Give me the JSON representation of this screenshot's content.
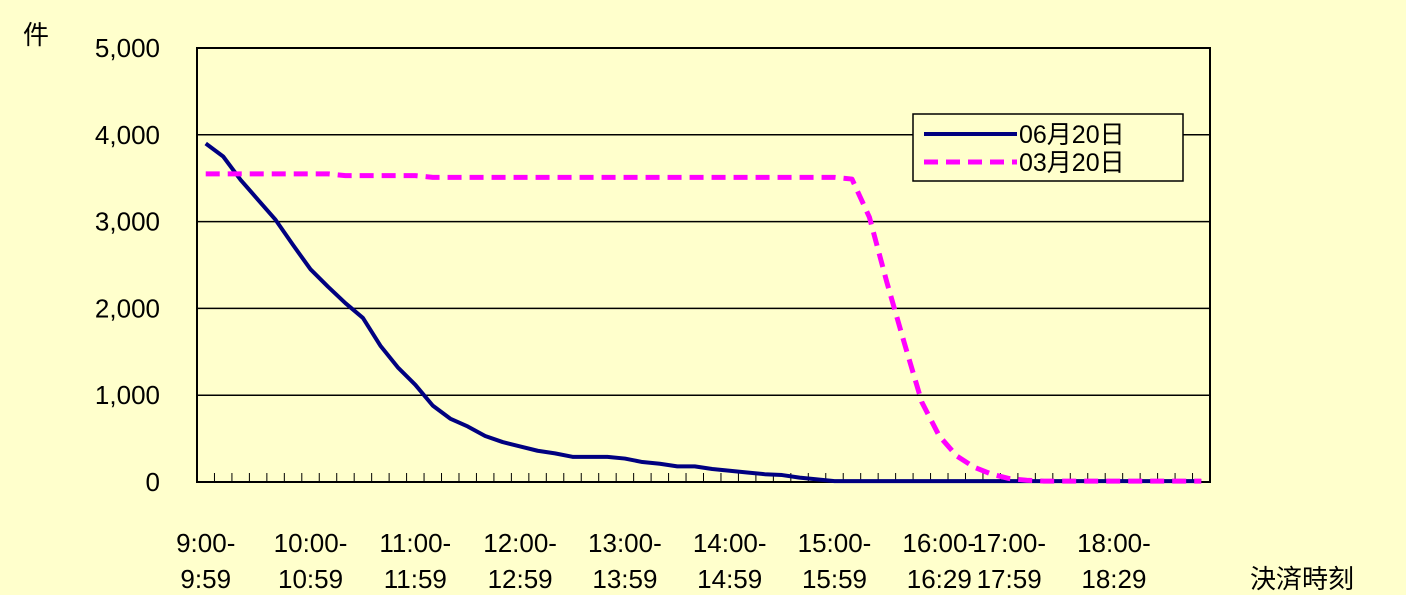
{
  "chart_data": {
    "type": "line",
    "ylabel": "件",
    "xlabel": "決済時刻",
    "ylim": [
      0,
      5000
    ],
    "yticks": [
      "0",
      "1,000",
      "2,000",
      "3,000",
      "4,000",
      "5,000"
    ],
    "ytick_values": [
      0,
      1000,
      2000,
      3000,
      4000,
      5000
    ],
    "x_count": 58,
    "x_category_labels": [
      {
        "index": 0,
        "line1": "9:00-",
        "line2": "9:59"
      },
      {
        "index": 6,
        "line1": "10:00-",
        "line2": "10:59"
      },
      {
        "index": 12,
        "line1": "11:00-",
        "line2": "11:59"
      },
      {
        "index": 18,
        "line1": "12:00-",
        "line2": "12:59"
      },
      {
        "index": 24,
        "line1": "13:00-",
        "line2": "13:59"
      },
      {
        "index": 30,
        "line1": "14:00-",
        "line2": "14:59"
      },
      {
        "index": 36,
        "line1": "15:00-",
        "line2": "15:59"
      },
      {
        "index": 42,
        "line1": "16:00-",
        "line2": "16:29"
      },
      {
        "index": 46,
        "line1": "17:00-",
        "line2": "17:59"
      },
      {
        "index": 52,
        "line1": "18:00-",
        "line2": "18:29"
      }
    ],
    "grid": true,
    "legend_position": "top-right",
    "series": [
      {
        "name": "06月20日",
        "color": "#000080",
        "style": "solid",
        "values": [
          3900,
          3750,
          3480,
          3250,
          3020,
          2730,
          2450,
          2250,
          2060,
          1890,
          1570,
          1320,
          1120,
          880,
          730,
          640,
          530,
          460,
          410,
          360,
          330,
          290,
          290,
          290,
          270,
          230,
          210,
          180,
          180,
          150,
          130,
          110,
          90,
          80,
          50,
          30,
          10,
          10,
          10,
          10,
          10,
          10,
          10,
          10,
          10,
          10,
          10,
          10,
          10,
          10,
          10,
          10,
          10,
          10,
          10,
          10,
          10,
          10
        ]
      },
      {
        "name": "03月20日",
        "color": "#ff00ff",
        "style": "dashed",
        "values": [
          3550,
          3550,
          3550,
          3550,
          3550,
          3550,
          3550,
          3550,
          3530,
          3530,
          3530,
          3530,
          3530,
          3510,
          3510,
          3510,
          3510,
          3510,
          3510,
          3510,
          3510,
          3510,
          3510,
          3510,
          3510,
          3510,
          3510,
          3510,
          3510,
          3510,
          3510,
          3510,
          3510,
          3510,
          3510,
          3510,
          3510,
          3490,
          3050,
          2300,
          1600,
          920,
          530,
          300,
          170,
          90,
          40,
          20,
          10,
          10,
          10,
          10,
          10,
          10,
          10,
          10,
          10,
          10
        ]
      }
    ]
  }
}
